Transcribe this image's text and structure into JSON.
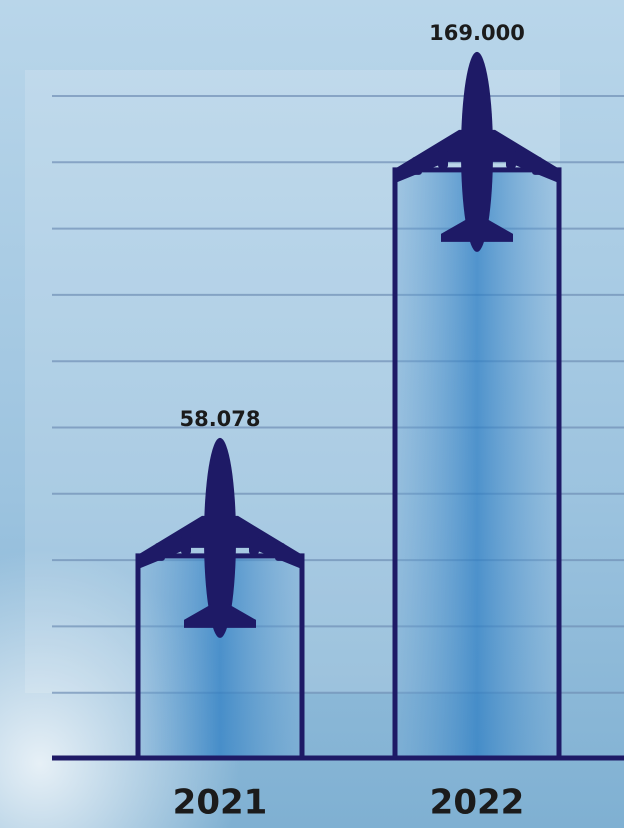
{
  "chart_data": {
    "type": "bar",
    "categories": [
      "2021",
      "2022"
    ],
    "values": [
      58078,
      169000
    ],
    "value_labels": [
      "58.078",
      "169.000"
    ],
    "color": "#1e1a66",
    "ylim": [
      0,
      200000
    ],
    "grid": true
  }
}
